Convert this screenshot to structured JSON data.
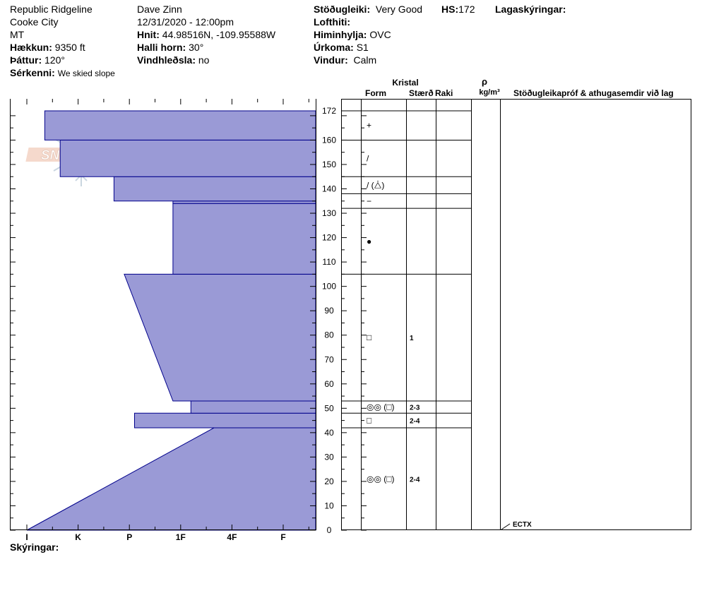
{
  "header": {
    "location": "Republic Ridgeline",
    "area": "Cooke City",
    "state": "MT",
    "elevation_label": "Hækkun:",
    "elevation": "9350 ft",
    "aspect_label": "Þáttur:",
    "aspect": "120°",
    "observer": "Dave Zinn",
    "datetime": "12/31/2020 - 12:00pm",
    "coords_label": "Hnit:",
    "coords": "44.98516N, -109.95588W",
    "slope_label": "Halli horn:",
    "slope": "30°",
    "wind_loading_label": "Vindhleðsla:",
    "wind_loading": "no",
    "stability_label": "Stöðugleiki:",
    "stability": "Very Good",
    "hs_label": "HS:",
    "hs": "172",
    "air_temp_label": "Lofthiti:",
    "sky_label": "Himinhylja:",
    "sky": "OVC",
    "precip_label": "Úrkoma:",
    "precip": "S1",
    "wind_label": "Vindur:",
    "wind": "Calm",
    "layer_notes_label": "Lagaskýringar:",
    "features_label": "Sérkenni:",
    "features": "We skied slope",
    "legend_label": "Skýringar:"
  },
  "logo": {
    "text": "SNOW PILOT"
  },
  "table_headers": {
    "crystal": "Kristal",
    "form": "Form",
    "size": "Stærð",
    "moisture": "Raki",
    "rho": "ρ",
    "density_unit": "kg/m³",
    "tests": "Stöðugleikapróf & athugasemdir við lag"
  },
  "colors": {
    "fill": "#9a9ad6",
    "stroke": "#00008b"
  },
  "chart_data": {
    "type": "bar",
    "orientation": "horizontal-step",
    "y_axis": {
      "range": [
        0,
        172
      ],
      "ticks": [
        0,
        10,
        20,
        30,
        40,
        50,
        60,
        70,
        80,
        90,
        100,
        110,
        120,
        130,
        140,
        150,
        160,
        172
      ]
    },
    "x_axis": {
      "categories": [
        "I",
        "K",
        "P",
        "1F",
        "4F",
        "F"
      ],
      "direction": "reversed"
    },
    "hardness_profile": [
      {
        "bottom": 0,
        "top": 42,
        "hardness_bottom": 0,
        "hardness_top": 3.65
      },
      {
        "bottom": 42,
        "top": 48,
        "hardness": 2.1
      },
      {
        "bottom": 48,
        "top": 53,
        "hardness": 3.2
      },
      {
        "bottom": 53,
        "top": 105,
        "hardness_bottom": 2.85,
        "hardness_top": 1.9
      },
      {
        "bottom": 105,
        "top": 134,
        "hardness": 2.85
      },
      {
        "bottom": 134,
        "top": 135,
        "hardness": 2.85
      },
      {
        "bottom": 135,
        "top": 145,
        "hardness": 1.7
      },
      {
        "bottom": 145,
        "top": 160,
        "hardness": 0.65
      },
      {
        "bottom": 160,
        "top": 172,
        "hardness": 0.35
      }
    ],
    "layers": [
      {
        "top": 172,
        "bottom": 160,
        "form": "+",
        "size": ""
      },
      {
        "top": 160,
        "bottom": 145,
        "form": "/",
        "size": ""
      },
      {
        "top": 145,
        "bottom": 138,
        "form": "/ (⧊)",
        "size": ""
      },
      {
        "top": 138,
        "bottom": 132,
        "form": "−",
        "size": ""
      },
      {
        "top": 132,
        "bottom": 105,
        "form": "●",
        "size": ""
      },
      {
        "top": 105,
        "bottom": 53,
        "form": "□",
        "size": "1"
      },
      {
        "top": 53,
        "bottom": 48,
        "form": "◎◎ (□)",
        "size": "2-3"
      },
      {
        "top": 48,
        "bottom": 42,
        "form": "□",
        "size": "2-4"
      },
      {
        "top": 42,
        "bottom": 0,
        "form": "◎◎ (□)",
        "size": "2-4"
      }
    ],
    "tests": [
      {
        "depth": 0,
        "label": "ECTX"
      }
    ]
  }
}
